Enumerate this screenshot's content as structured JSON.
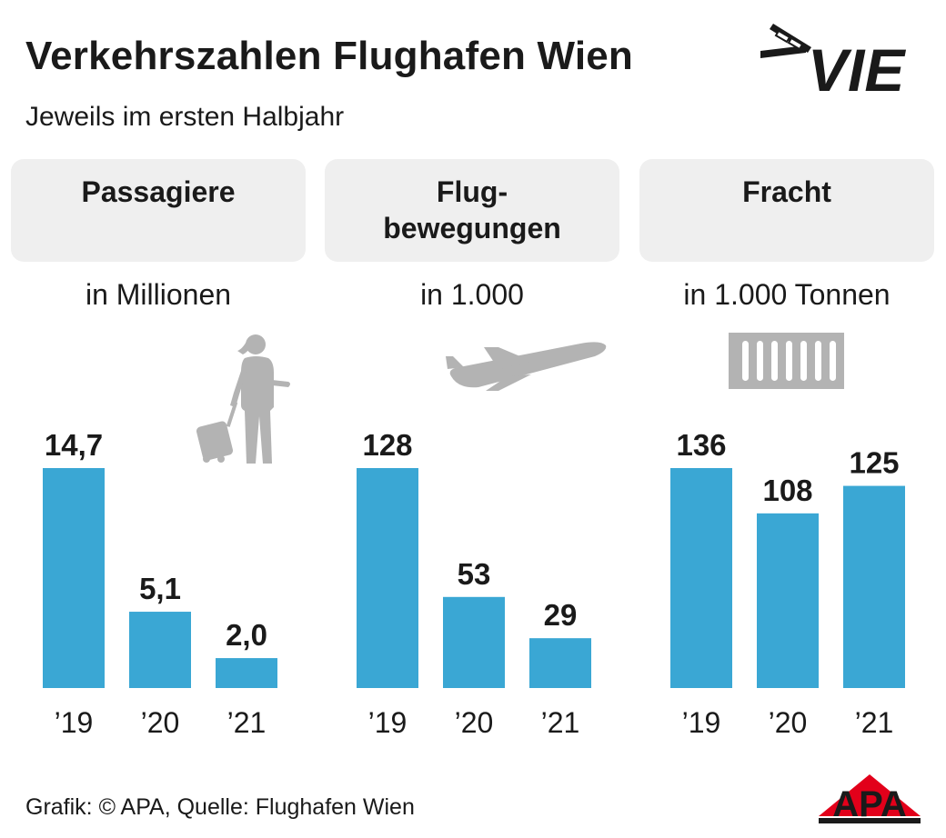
{
  "header": {
    "title": "Verkehrszahlen Flughafen Wien",
    "subtitle": "Jeweils im ersten Halbjahr"
  },
  "logos": {
    "vie": "VIE",
    "apa": "APA"
  },
  "footer": {
    "source": "Grafik: © APA, Quelle: Flughafen Wien"
  },
  "colors": {
    "bar": "#3aa7d4",
    "panel_bg": "#efefef",
    "icon": "#b3b3b3",
    "text": "#1a1a1a",
    "apa_red": "#e2001a"
  },
  "chart_data": [
    {
      "type": "bar",
      "title": "Passagiere",
      "unit": "in Millionen",
      "icon": "traveler-with-suitcase-icon",
      "categories": [
        "’19",
        "’20",
        "’21"
      ],
      "values": [
        14.7,
        5.1,
        2.0
      ],
      "value_labels": [
        "14,7",
        "5,1",
        "2,0"
      ],
      "ylim": [
        0,
        14.7
      ],
      "grid": false
    },
    {
      "type": "bar",
      "title": "Flug-\nbewegungen",
      "unit": "in 1.000",
      "icon": "airplane-icon",
      "categories": [
        "’19",
        "’20",
        "’21"
      ],
      "values": [
        128,
        53,
        29
      ],
      "value_labels": [
        "128",
        "53",
        "29"
      ],
      "ylim": [
        0,
        128
      ],
      "grid": false
    },
    {
      "type": "bar",
      "title": "Fracht",
      "unit": "in 1.000 Tonnen",
      "icon": "cargo-container-icon",
      "categories": [
        "’19",
        "’20",
        "’21"
      ],
      "values": [
        136,
        108,
        125
      ],
      "value_labels": [
        "136",
        "108",
        "125"
      ],
      "ylim": [
        0,
        136
      ],
      "grid": false
    }
  ]
}
